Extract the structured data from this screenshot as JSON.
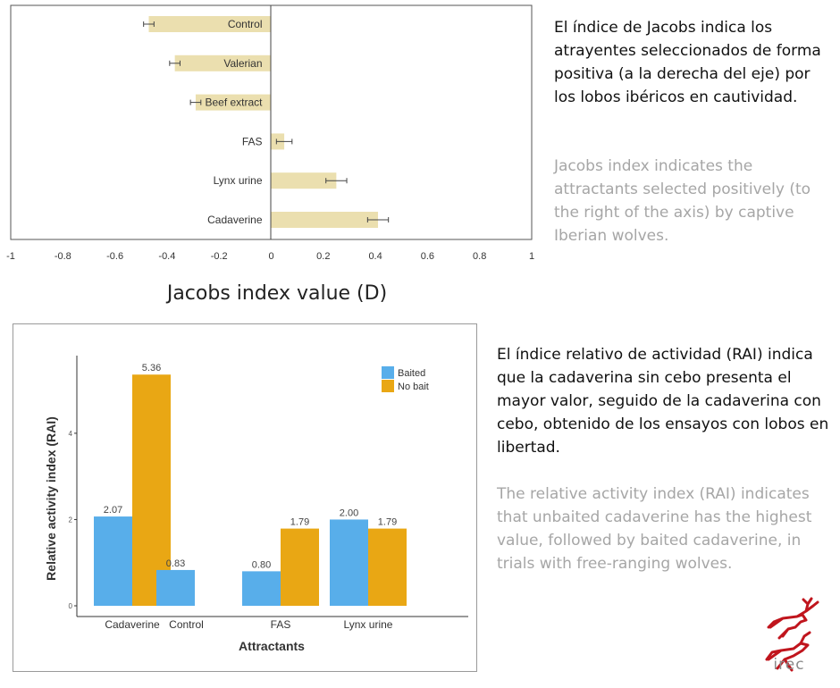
{
  "chart_data": [
    {
      "type": "bar",
      "orientation": "horizontal",
      "categories": [
        "Control",
        "Valerian",
        "Beef extract",
        "FAS",
        "Lynx urine",
        "Cadaverine"
      ],
      "values": [
        -0.47,
        -0.37,
        -0.29,
        0.05,
        0.25,
        0.41
      ],
      "errors": [
        0.02,
        0.02,
        0.02,
        0.03,
        0.04,
        0.04
      ],
      "xlabel": "Jacobs index value (D)",
      "xlim": [
        -1,
        1
      ],
      "xticks": [
        "-1",
        "-0.8",
        "-0.6",
        "-0.4",
        "-0.2",
        "0",
        "0.2",
        "0.4",
        "0.6",
        "0.8",
        "1"
      ],
      "bar_color": "#ebdfaf"
    },
    {
      "type": "bar",
      "categories": [
        "Cadaverine",
        "Control",
        "FAS",
        "Lynx urine"
      ],
      "series": [
        {
          "name": "Baited",
          "values": [
            2.07,
            0.83,
            0.8,
            2.0
          ],
          "labels": [
            "2.07",
            "0.83",
            "0.80",
            "2.00"
          ],
          "color": "#58aeea"
        },
        {
          "name": "No bait",
          "values": [
            5.36,
            null,
            1.79,
            1.79
          ],
          "labels": [
            "5.36",
            "",
            "1.79",
            "1.79"
          ],
          "color": "#e9a714"
        }
      ],
      "xlabel": "Attractants",
      "ylabel": "Relative activity index (RAI)",
      "ylim": [
        0,
        5.8
      ],
      "yticks": [
        "0",
        "2",
        "4"
      ],
      "legend": "top-right"
    }
  ],
  "text": {
    "es_1": "El índice de Jacobs indica los atrayentes seleccionados de forma positiva (a la derecha del eje) por los lobos ibéricos en cautividad.",
    "en_1": "Jacobs index indicates the attractants selected positively (to the right of the axis) by captive Iberian wolves.",
    "es_2": "El índice relativo de actividad (RAI) indica que la cadaverina sin cebo presenta el mayor valor, seguido de la cadaverina con cebo, obtenido de los ensayos con lobos en libertad.",
    "en_2": "The relative activity index (RAI) indicates that unbaited cadaverine has the highest value, followed by baited cadaverine, in trials with free-ranging wolves."
  },
  "logo": {
    "text": "irec",
    "color": "#c0151d"
  }
}
